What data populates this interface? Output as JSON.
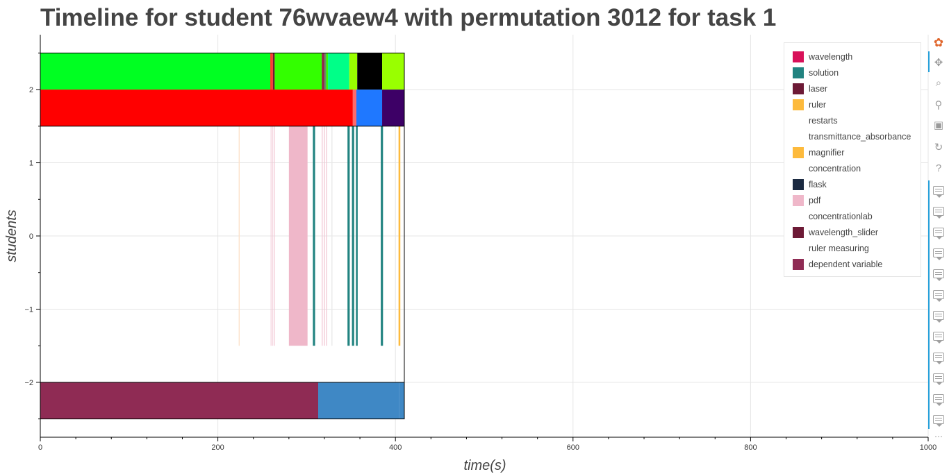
{
  "title": "Timeline for student 76wvaew4 with permutation 3012 for task 1",
  "chart_data": {
    "type": "timeline",
    "title": "Timeline for student 76wvaew4 with permutation 3012 for task 1",
    "xlabel": "time(s)",
    "ylabel": "students",
    "xlim": [
      0,
      1000
    ],
    "ylim": [
      -2.75,
      2.75
    ],
    "x_ticks": [
      0,
      200,
      400,
      600,
      800,
      1000
    ],
    "x_tick_labels": [
      "0",
      "200",
      "400",
      "600",
      "800",
      "1000"
    ],
    "y_ticks": [
      -2,
      -1,
      0,
      1,
      2
    ],
    "y_tick_labels": [
      "−2",
      "−1",
      "0",
      "1",
      "2"
    ],
    "grid": true,
    "legend_position": "top-right",
    "frame_end": 410,
    "segments": [
      {
        "row": "top",
        "y0": 2,
        "y1": 2.5,
        "x0": 0,
        "x1": 259,
        "color": "#00ff22"
      },
      {
        "row": "top",
        "y0": 2,
        "y1": 2.5,
        "x0": 259,
        "x1": 262,
        "color": "#ff3b30"
      },
      {
        "row": "top",
        "y0": 2,
        "y1": 2.5,
        "x0": 262,
        "x1": 264,
        "color": "#6d1a2e"
      },
      {
        "row": "top",
        "y0": 2,
        "y1": 2.5,
        "x0": 264,
        "x1": 317,
        "color": "#33ff00"
      },
      {
        "row": "top",
        "y0": 2,
        "y1": 2.5,
        "x0": 317,
        "x1": 320,
        "color": "#8f2b48"
      },
      {
        "row": "top",
        "y0": 2,
        "y1": 2.5,
        "x0": 320,
        "x1": 322,
        "color": "#6b8c6b"
      },
      {
        "row": "top",
        "y0": 2,
        "y1": 2.5,
        "x0": 322,
        "x1": 324,
        "color": "#33ff00"
      },
      {
        "row": "top",
        "y0": 2,
        "y1": 2.5,
        "x0": 324,
        "x1": 348,
        "color": "#00ff88"
      },
      {
        "row": "top",
        "y0": 2,
        "y1": 2.5,
        "x0": 348,
        "x1": 357,
        "color": "#99ff00"
      },
      {
        "row": "top",
        "y0": 2,
        "y1": 2.5,
        "x0": 357,
        "x1": 385,
        "color": "#000000"
      },
      {
        "row": "top",
        "y0": 2,
        "y1": 2.5,
        "x0": 385,
        "x1": 410,
        "color": "#99ff00"
      },
      {
        "row": "mid",
        "y0": 1.5,
        "y1": 2,
        "x0": 0,
        "x1": 352,
        "color": "#ff0000"
      },
      {
        "row": "mid",
        "y0": 1.5,
        "y1": 2,
        "x0": 352,
        "x1": 356,
        "color": "#ff6a6a"
      },
      {
        "row": "mid",
        "y0": 1.5,
        "y1": 2,
        "x0": 356,
        "x1": 385,
        "color": "#1f78ff"
      },
      {
        "row": "mid",
        "y0": 1.5,
        "y1": 2,
        "x0": 385,
        "x1": 410,
        "color": "#3d0066"
      },
      {
        "row": "events",
        "y0": -1.5,
        "y1": 1.5,
        "x0": 223.5,
        "x1": 224.5,
        "color": "#fde0c8"
      },
      {
        "row": "events",
        "y0": -1.5,
        "y1": 1.5,
        "x0": 259.5,
        "x1": 260.3,
        "color": "#f2c7d5"
      },
      {
        "row": "events",
        "y0": -1.5,
        "y1": 1.5,
        "x0": 261.5,
        "x1": 262.3,
        "color": "#f2c7d5"
      },
      {
        "row": "events",
        "y0": -1.5,
        "y1": 1.5,
        "x0": 263.5,
        "x1": 264.3,
        "color": "#f2c7d5"
      },
      {
        "row": "events",
        "y0": -1.5,
        "y1": 1.5,
        "x0": 280,
        "x1": 301,
        "color": "#efb7c9"
      },
      {
        "row": "events",
        "y0": -1.5,
        "y1": 1.5,
        "x0": 307,
        "x1": 309.5,
        "color": "#218380"
      },
      {
        "row": "events",
        "y0": -1.5,
        "y1": 1.5,
        "x0": 317,
        "x1": 318,
        "color": "#f2c7d5"
      },
      {
        "row": "events",
        "y0": -1.5,
        "y1": 1.5,
        "x0": 319.5,
        "x1": 320.5,
        "color": "#f2c7d5"
      },
      {
        "row": "events",
        "y0": -1.5,
        "y1": 1.5,
        "x0": 322,
        "x1": 323,
        "color": "#f2c7d5"
      },
      {
        "row": "events",
        "y0": -1.5,
        "y1": 1.5,
        "x0": 328,
        "x1": 329,
        "color": "#e8e8e8"
      },
      {
        "row": "events",
        "y0": -1.5,
        "y1": 1.5,
        "x0": 346,
        "x1": 348.5,
        "color": "#218380"
      },
      {
        "row": "events",
        "y0": -1.5,
        "y1": 1.5,
        "x0": 351,
        "x1": 353.5,
        "color": "#218380"
      },
      {
        "row": "events",
        "y0": -1.5,
        "y1": 1.5,
        "x0": 355.5,
        "x1": 357.5,
        "color": "#218380"
      },
      {
        "row": "events",
        "y0": -1.5,
        "y1": 1.5,
        "x0": 383.5,
        "x1": 386,
        "color": "#218380"
      },
      {
        "row": "events",
        "y0": -1.5,
        "y1": 1.5,
        "x0": 403.5,
        "x1": 405.5,
        "color": "#fdba3c"
      },
      {
        "row": "bottom",
        "y0": -2.5,
        "y1": -2,
        "x0": 0,
        "x1": 313,
        "color": "#8f2b54"
      },
      {
        "row": "bottom",
        "y0": -2.5,
        "y1": -2,
        "x0": 313,
        "x1": 404,
        "color": "#3f88c5"
      },
      {
        "row": "bottom",
        "y0": -2.5,
        "y1": -2,
        "x0": 404,
        "x1": 410,
        "color": "#3f88c5"
      }
    ],
    "legend": [
      {
        "label": "wavelength",
        "color": "#d81159"
      },
      {
        "label": "solution",
        "color": "#218380"
      },
      {
        "label": "laser",
        "color": "#6d1a36"
      },
      {
        "label": "ruler",
        "color": "#fdba3c"
      },
      {
        "label": "restarts",
        "color": ""
      },
      {
        "label": "transmittance_absorbance",
        "color": ""
      },
      {
        "label": "magnifier",
        "color": "#fdba3c"
      },
      {
        "label": "concentration",
        "color": ""
      },
      {
        "label": "flask",
        "color": "#1b2a41"
      },
      {
        "label": "pdf",
        "color": "#efb7c9"
      },
      {
        "label": "concentrationlab",
        "color": ""
      },
      {
        "label": "wavelength_slider",
        "color": "#6d1a36"
      },
      {
        "label": "ruler measuring",
        "color": ""
      },
      {
        "label": "dependent variable",
        "color": "#8f2b54"
      }
    ]
  },
  "toolbar": {
    "tools": [
      {
        "name": "bokeh-logo-icon",
        "glyph": "✿"
      },
      {
        "name": "pan-icon",
        "glyph": "✥"
      },
      {
        "name": "box-zoom-icon",
        "glyph": "⌕"
      },
      {
        "name": "wheel-zoom-icon",
        "glyph": "⚲"
      },
      {
        "name": "save-icon",
        "glyph": "▣"
      },
      {
        "name": "reset-icon",
        "glyph": "↻"
      },
      {
        "name": "help-icon",
        "glyph": "?"
      }
    ],
    "hover_tool_count": 12,
    "more_glyph": "⋯"
  }
}
